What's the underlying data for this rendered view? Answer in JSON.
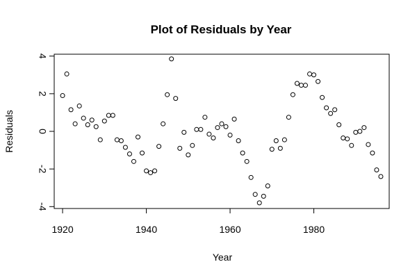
{
  "chart_data": {
    "type": "scatter",
    "title": "Plot of Residuals by Year",
    "xlabel": "Year",
    "ylabel": "Residuals",
    "xlim": [
      1918,
      1998
    ],
    "ylim": [
      -4.1,
      4.1
    ],
    "x_ticks": [
      1920,
      1940,
      1960,
      1980
    ],
    "y_ticks": [
      -4,
      -2,
      0,
      2,
      4
    ],
    "x_tick_labels": [
      "1920",
      "1940",
      "1960",
      "1980"
    ],
    "y_tick_labels": [
      "-4",
      "-2",
      "0",
      "2",
      "4"
    ],
    "grid": false,
    "colors": {
      "points": "#000000",
      "axes": "#000000",
      "background": "#ffffff"
    },
    "points": [
      {
        "x": 1920,
        "y": 1.9
      },
      {
        "x": 1921,
        "y": 3.05
      },
      {
        "x": 1922,
        "y": 1.15
      },
      {
        "x": 1923,
        "y": 0.4
      },
      {
        "x": 1924,
        "y": 1.35
      },
      {
        "x": 1925,
        "y": 0.7
      },
      {
        "x": 1926,
        "y": 0.35
      },
      {
        "x": 1927,
        "y": 0.6
      },
      {
        "x": 1928,
        "y": 0.25
      },
      {
        "x": 1929,
        "y": -0.45
      },
      {
        "x": 1930,
        "y": 0.55
      },
      {
        "x": 1931,
        "y": 0.85
      },
      {
        "x": 1932,
        "y": 0.85
      },
      {
        "x": 1933,
        "y": -0.45
      },
      {
        "x": 1934,
        "y": -0.5
      },
      {
        "x": 1935,
        "y": -0.85
      },
      {
        "x": 1936,
        "y": -1.2
      },
      {
        "x": 1937,
        "y": -1.6
      },
      {
        "x": 1938,
        "y": -0.3
      },
      {
        "x": 1939,
        "y": -1.15
      },
      {
        "x": 1940,
        "y": -2.1
      },
      {
        "x": 1941,
        "y": -2.2
      },
      {
        "x": 1942,
        "y": -2.1
      },
      {
        "x": 1943,
        "y": -0.8
      },
      {
        "x": 1944,
        "y": 0.4
      },
      {
        "x": 1945,
        "y": 1.95
      },
      {
        "x": 1946,
        "y": 3.85
      },
      {
        "x": 1947,
        "y": 1.75
      },
      {
        "x": 1948,
        "y": -0.9
      },
      {
        "x": 1949,
        "y": -0.05
      },
      {
        "x": 1950,
        "y": -1.25
      },
      {
        "x": 1951,
        "y": -0.75
      },
      {
        "x": 1952,
        "y": 0.1
      },
      {
        "x": 1953,
        "y": 0.1
      },
      {
        "x": 1954,
        "y": 0.75
      },
      {
        "x": 1955,
        "y": -0.15
      },
      {
        "x": 1956,
        "y": -0.35
      },
      {
        "x": 1957,
        "y": 0.2
      },
      {
        "x": 1958,
        "y": 0.4
      },
      {
        "x": 1959,
        "y": 0.25
      },
      {
        "x": 1960,
        "y": -0.2
      },
      {
        "x": 1961,
        "y": 0.65
      },
      {
        "x": 1962,
        "y": -0.5
      },
      {
        "x": 1963,
        "y": -1.15
      },
      {
        "x": 1964,
        "y": -1.6
      },
      {
        "x": 1965,
        "y": -2.45
      },
      {
        "x": 1966,
        "y": -3.35
      },
      {
        "x": 1967,
        "y": -3.8
      },
      {
        "x": 1968,
        "y": -3.45
      },
      {
        "x": 1969,
        "y": -2.9
      },
      {
        "x": 1970,
        "y": -0.95
      },
      {
        "x": 1971,
        "y": -0.5
      },
      {
        "x": 1972,
        "y": -0.9
      },
      {
        "x": 1973,
        "y": -0.45
      },
      {
        "x": 1974,
        "y": 0.75
      },
      {
        "x": 1975,
        "y": 1.95
      },
      {
        "x": 1976,
        "y": 2.55
      },
      {
        "x": 1977,
        "y": 2.45
      },
      {
        "x": 1978,
        "y": 2.45
      },
      {
        "x": 1979,
        "y": 3.05
      },
      {
        "x": 1980,
        "y": 3.0
      },
      {
        "x": 1981,
        "y": 2.65
      },
      {
        "x": 1982,
        "y": 1.8
      },
      {
        "x": 1983,
        "y": 1.25
      },
      {
        "x": 1984,
        "y": 0.95
      },
      {
        "x": 1985,
        "y": 1.15
      },
      {
        "x": 1986,
        "y": 0.35
      },
      {
        "x": 1987,
        "y": -0.35
      },
      {
        "x": 1988,
        "y": -0.4
      },
      {
        "x": 1989,
        "y": -0.75
      },
      {
        "x": 1990,
        "y": -0.05
      },
      {
        "x": 1991,
        "y": 0.0
      },
      {
        "x": 1992,
        "y": 0.2
      },
      {
        "x": 1993,
        "y": -0.7
      },
      {
        "x": 1994,
        "y": -1.15
      },
      {
        "x": 1995,
        "y": -2.05
      },
      {
        "x": 1996,
        "y": -2.4
      }
    ]
  }
}
